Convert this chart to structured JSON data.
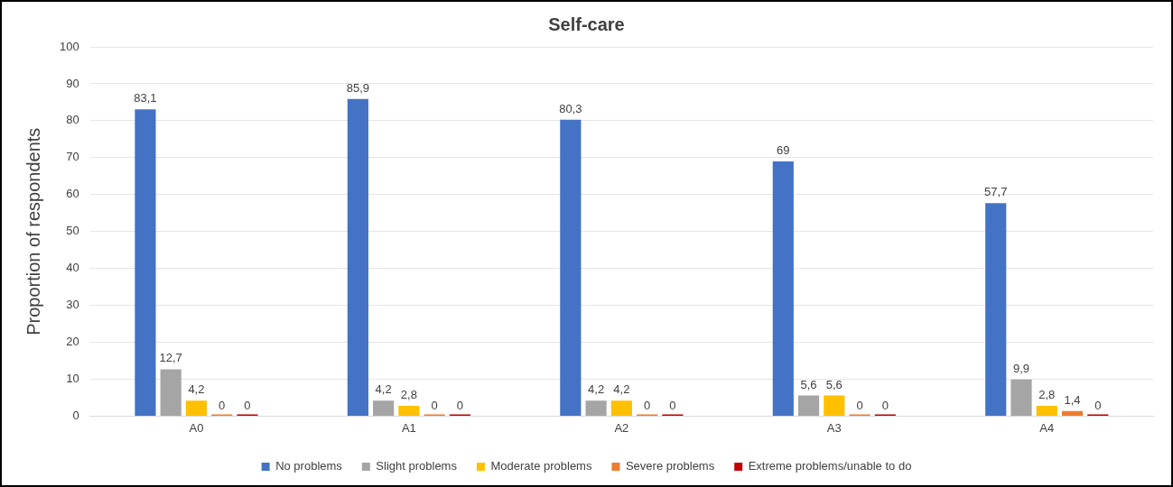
{
  "chart_data": {
    "type": "bar",
    "title": "Self-care",
    "ylabel": "Proportion of respondents",
    "categories": [
      "A0",
      "A1",
      "A2",
      "A3",
      "A4"
    ],
    "series": [
      {
        "name": "No problems",
        "color": "#4472c4",
        "values": [
          83.1,
          85.9,
          80.3,
          69,
          57.7
        ],
        "value_labels": [
          "83,1",
          "85,9",
          "80,3",
          "69",
          "57,7"
        ]
      },
      {
        "name": "Slight problems",
        "color": "#a5a5a5",
        "values": [
          12.7,
          4.2,
          4.2,
          5.6,
          9.9
        ],
        "value_labels": [
          "12,7",
          "4,2",
          "4,2",
          "5,6",
          "9,9"
        ]
      },
      {
        "name": "Moderate problems",
        "color": "#ffc000",
        "values": [
          4.2,
          2.8,
          4.2,
          5.6,
          2.8
        ],
        "value_labels": [
          "4,2",
          "2,8",
          "4,2",
          "5,6",
          "2,8"
        ]
      },
      {
        "name": "Severe problems",
        "color": "#ed7d31",
        "values": [
          0,
          0,
          0,
          0,
          1.4
        ],
        "value_labels": [
          "0",
          "0",
          "0",
          "0",
          "1,4"
        ]
      },
      {
        "name": "Extreme problems/unable to do",
        "color": "#c00000",
        "values": [
          0,
          0,
          0,
          0,
          0
        ],
        "value_labels": [
          "0",
          "0",
          "0",
          "0",
          "0"
        ]
      }
    ],
    "ylim": [
      0,
      100
    ],
    "yticks": [
      0,
      10,
      20,
      30,
      40,
      50,
      60,
      70,
      80,
      90,
      100
    ],
    "grid": "y",
    "legend": "bottom"
  }
}
